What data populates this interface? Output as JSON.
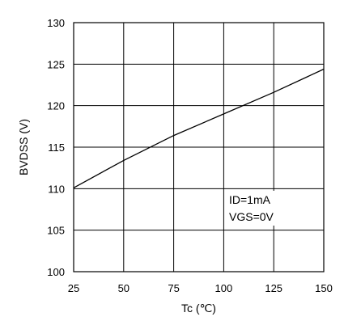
{
  "chart_data": {
    "type": "line",
    "title": "",
    "xlabel": "Tc (℃)",
    "ylabel": "BVDSS (V)",
    "xlim": [
      25,
      150
    ],
    "ylim": [
      100,
      130
    ],
    "x_ticks": [
      25,
      50,
      75,
      100,
      125,
      150
    ],
    "y_ticks": [
      100,
      105,
      110,
      115,
      120,
      125,
      130
    ],
    "grid": true,
    "legend": "none",
    "annotations": [
      "ID=1mA",
      "VGS=0V"
    ],
    "series": [
      {
        "x": [
          25,
          50,
          75,
          100,
          125,
          150
        ],
        "y": [
          110.1,
          113.4,
          116.4,
          119.0,
          121.6,
          124.4
        ]
      }
    ]
  }
}
